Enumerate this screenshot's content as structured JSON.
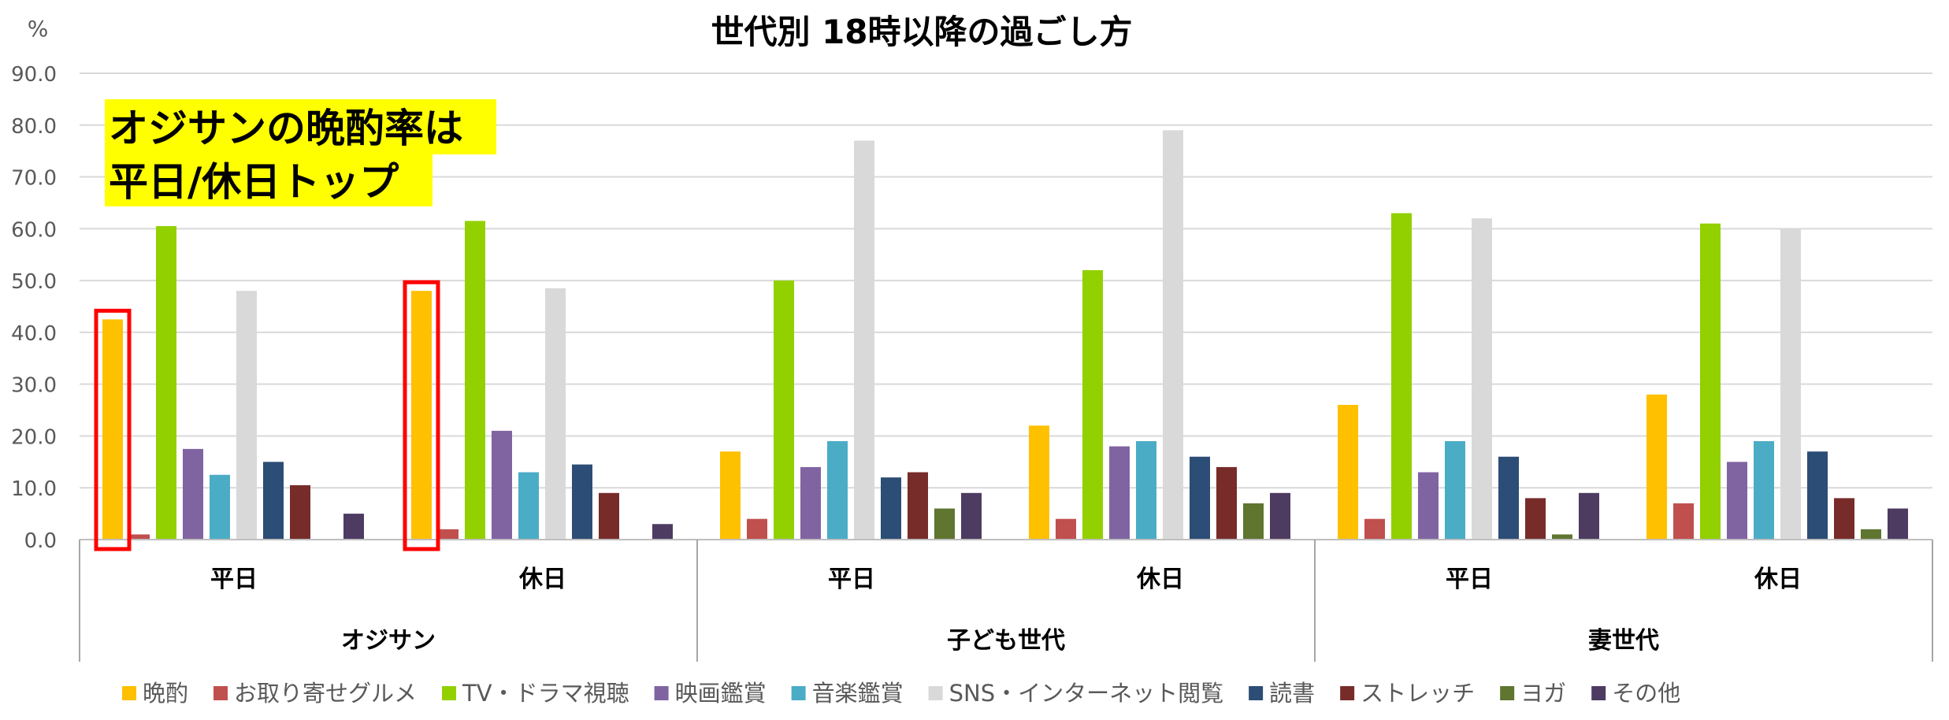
{
  "chart_data": {
    "type": "bar",
    "title": "世代別 18時以降の過ごし方",
    "ylabel": "%",
    "ylim": [
      0,
      90
    ],
    "yticks": [
      "0.0",
      "10.0",
      "20.0",
      "30.0",
      "40.0",
      "50.0",
      "60.0",
      "70.0",
      "80.0",
      "90.0"
    ],
    "grid": true,
    "legend_position": "bottom",
    "groups": [
      {
        "label": "オジサン",
        "categories": [
          "平日",
          "休日"
        ]
      },
      {
        "label": "子ども世代",
        "categories": [
          "平日",
          "休日"
        ]
      },
      {
        "label": "妻世代",
        "categories": [
          "平日",
          "休日"
        ]
      }
    ],
    "series": [
      {
        "name": "晩酌",
        "color": "#FFC000",
        "values": [
          42.5,
          48,
          17,
          22,
          26,
          28
        ]
      },
      {
        "name": "お取り寄せグルメ",
        "color": "#C0504D",
        "values": [
          1,
          2,
          4,
          4,
          4,
          7
        ]
      },
      {
        "name": "TV・ドラマ視聴",
        "color": "#92D000",
        "values": [
          60.5,
          61.5,
          50,
          52,
          63,
          61
        ]
      },
      {
        "name": "映画鑑賞",
        "color": "#8064A2",
        "values": [
          17.5,
          21,
          14,
          18,
          13,
          15
        ]
      },
      {
        "name": "音楽鑑賞",
        "color": "#4BACC6",
        "values": [
          12.5,
          13,
          19,
          19,
          19,
          19
        ]
      },
      {
        "name": "SNS・インターネット閲覧",
        "color": "#D9D9D9",
        "values": [
          48,
          48.5,
          77,
          79,
          62,
          60
        ]
      },
      {
        "name": "読書",
        "color": "#2C4D75",
        "values": [
          15,
          14.5,
          12,
          16,
          16,
          17
        ]
      },
      {
        "name": "ストレッチ",
        "color": "#772C2A",
        "values": [
          10.5,
          9,
          13,
          14,
          8,
          8
        ]
      },
      {
        "name": "ヨガ",
        "color": "#5F7530",
        "values": [
          0,
          0,
          6,
          7,
          1,
          2
        ]
      },
      {
        "name": "その他",
        "color": "#4D3B62",
        "values": [
          5,
          3,
          9,
          9,
          9,
          6
        ]
      }
    ],
    "annotation": {
      "lines": [
        "オジサンの晩酌率は",
        "平日/休日トップ"
      ],
      "background": "#FFFF00",
      "highlight": {
        "series": "晩酌",
        "categories": [
          "オジサン/平日",
          "オジサン/休日"
        ],
        "color": "#FF0000"
      }
    }
  }
}
